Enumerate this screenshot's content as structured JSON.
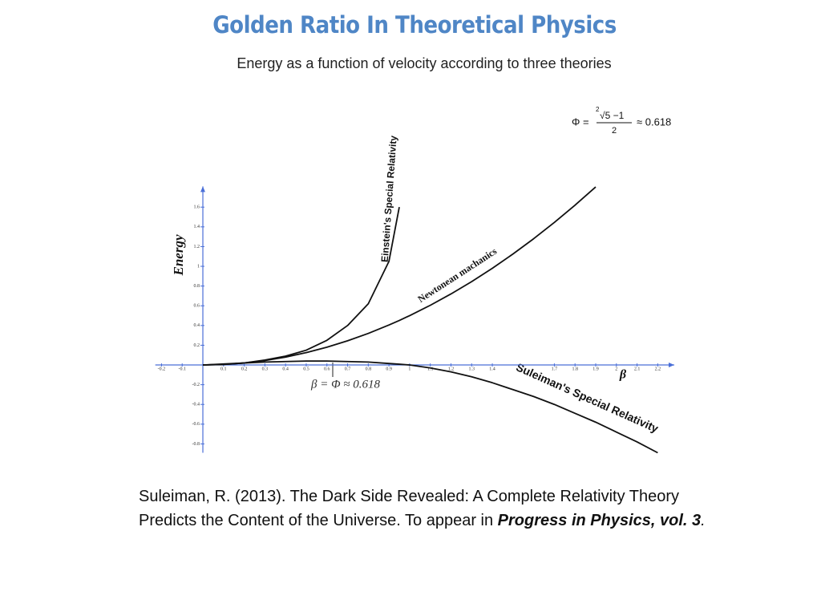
{
  "title": "Golden Ratio In Theoretical Physics",
  "chart_data": {
    "type": "line",
    "title": "Energy as a function of velocity according to three theories",
    "xlabel": "β",
    "ylabel": "Energy",
    "annotations": {
      "beta_phi": "β = Φ ≈ 0.618",
      "formula": {
        "lhs": "Φ =",
        "root_index": "2",
        "numerator": "√5 −1",
        "denominator": "2",
        "rhs": "≈ 0.618"
      }
    },
    "x": [
      0,
      0.1,
      0.2,
      0.3,
      0.4,
      0.5,
      0.6,
      0.7,
      0.8,
      0.9,
      0.95,
      1.0,
      1.1,
      1.2,
      1.3,
      1.4,
      1.5,
      1.6,
      1.7,
      1.8,
      1.9,
      2.0,
      2.1,
      2.2
    ],
    "series": [
      {
        "name": "Einstein's Special Relativity",
        "color": "#111111",
        "values": [
          0,
          0.005,
          0.02,
          0.05,
          0.09,
          0.15,
          0.25,
          0.4,
          0.62,
          1.05,
          1.6,
          null,
          null,
          null,
          null,
          null,
          null,
          null,
          null,
          null,
          null,
          null,
          null,
          null
        ]
      },
      {
        "name": "Newtonean machanics",
        "color": "#111111",
        "values": [
          0,
          0.005,
          0.02,
          0.045,
          0.08,
          0.125,
          0.18,
          0.245,
          0.32,
          0.405,
          0.451,
          0.5,
          0.605,
          0.72,
          0.845,
          0.98,
          1.125,
          1.28,
          1.445,
          1.62,
          1.805,
          null,
          null,
          null
        ]
      },
      {
        "name": "Suleiman's Special Relativity",
        "color": "#111111",
        "values": [
          0,
          0.01,
          0.02,
          0.03,
          0.035,
          0.04,
          0.04,
          0.035,
          0.03,
          0.015,
          0.008,
          0,
          -0.03,
          -0.07,
          -0.12,
          -0.18,
          -0.25,
          -0.32,
          -0.4,
          -0.49,
          -0.58,
          -0.68,
          -0.78,
          -0.89
        ]
      }
    ],
    "xlim": [
      -0.23,
      2.28
    ],
    "ylim": [
      -0.89,
      1.81
    ],
    "xticks": [
      -0.2,
      -0.1,
      0.1,
      0.2,
      0.3,
      0.4,
      0.5,
      0.6,
      0.7,
      0.8,
      0.9,
      1,
      1.1,
      1.2,
      1.3,
      1.4,
      1.7,
      1.8,
      1.9,
      2,
      2.1,
      2.2
    ],
    "yticks": [
      1.6,
      1.4,
      1.2,
      1,
      0.8,
      0.6,
      0.4,
      0.2,
      -0.2,
      -0.4,
      -0.6,
      -0.8
    ],
    "axis_color": "#4a6fd8",
    "grid": false
  },
  "citation": {
    "text": "Suleiman, R. (2013). The Dark Side Revealed: A Complete Relativity Theory Predicts the Content of the Universe. To appear in",
    "journal": "Progress in Physics, vol. 3",
    "end": "."
  }
}
